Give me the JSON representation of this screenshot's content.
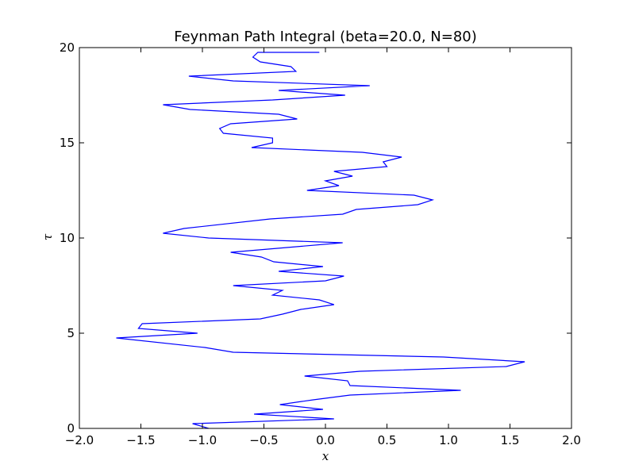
{
  "chart_data": {
    "type": "line",
    "title": "Feynman Path Integral (beta=20.0, N=80)",
    "xlabel": "x",
    "ylabel": "τ",
    "xlim": [
      -2.0,
      2.0
    ],
    "ylim": [
      0,
      20
    ],
    "xticks": [
      -2.0,
      -1.5,
      -1.0,
      -0.5,
      0.0,
      0.5,
      1.0,
      1.5,
      2.0
    ],
    "xtick_labels": [
      "−2.0",
      "−1.5",
      "−1.0",
      "−0.5",
      "0.0",
      "0.5",
      "1.0",
      "1.5",
      "2.0"
    ],
    "yticks": [
      0,
      5,
      10,
      15,
      20
    ],
    "ytick_labels": [
      "0",
      "5",
      "10",
      "15",
      "20"
    ],
    "grid": false,
    "line_color": "#0000ff",
    "series": [
      {
        "x": [
          -0.95,
          -1.08,
          0.07,
          -0.58,
          -0.02,
          -0.37,
          -0.1,
          0.2,
          1.1,
          0.2,
          0.18,
          -0.17,
          0.28,
          1.47,
          1.62,
          0.96,
          -0.75,
          -0.98,
          -1.7,
          -1.04,
          -1.52,
          -1.49,
          -0.53,
          -0.35,
          -0.2,
          0.07,
          -0.05,
          -0.43,
          -0.35,
          -0.75,
          0.0,
          0.15,
          -0.38,
          -0.02,
          -0.42,
          -0.52,
          -0.77,
          0.14,
          -0.95,
          -1.32,
          -1.15,
          -0.45,
          0.14,
          0.25,
          0.75,
          0.87,
          0.72,
          -0.15,
          0.11,
          0.0,
          0.22,
          0.07,
          0.5,
          0.47,
          0.62,
          0.3,
          -0.6,
          -0.43,
          -0.43,
          -0.83,
          -0.86,
          -0.77,
          -0.23,
          -0.38,
          -1.1,
          -1.32,
          -0.43,
          0.16,
          -0.38,
          0.36,
          -0.75,
          -1.11,
          -0.24,
          -0.28,
          -0.53,
          -0.59,
          -0.55,
          -0.05
        ],
        "y": [
          0.0,
          0.25,
          0.5,
          0.75,
          1.0,
          1.25,
          1.5,
          1.75,
          2.0,
          2.25,
          2.5,
          2.75,
          3.0,
          3.25,
          3.5,
          3.75,
          4.0,
          4.25,
          4.75,
          5.0,
          5.25,
          5.5,
          5.75,
          6.0,
          6.25,
          6.5,
          6.75,
          7.0,
          7.25,
          7.5,
          7.75,
          8.0,
          8.25,
          8.5,
          8.75,
          9.0,
          9.25,
          9.75,
          10.0,
          10.25,
          10.5,
          11.0,
          11.25,
          11.5,
          11.75,
          12.0,
          12.25,
          12.5,
          12.75,
          13.0,
          13.25,
          13.5,
          13.75,
          14.0,
          14.25,
          14.5,
          14.75,
          15.0,
          15.25,
          15.5,
          15.75,
          16.0,
          16.25,
          16.5,
          16.75,
          17.0,
          17.25,
          17.5,
          17.75,
          18.0,
          18.25,
          18.5,
          18.75,
          19.0,
          19.25,
          19.5,
          19.75,
          19.75
        ]
      }
    ]
  }
}
